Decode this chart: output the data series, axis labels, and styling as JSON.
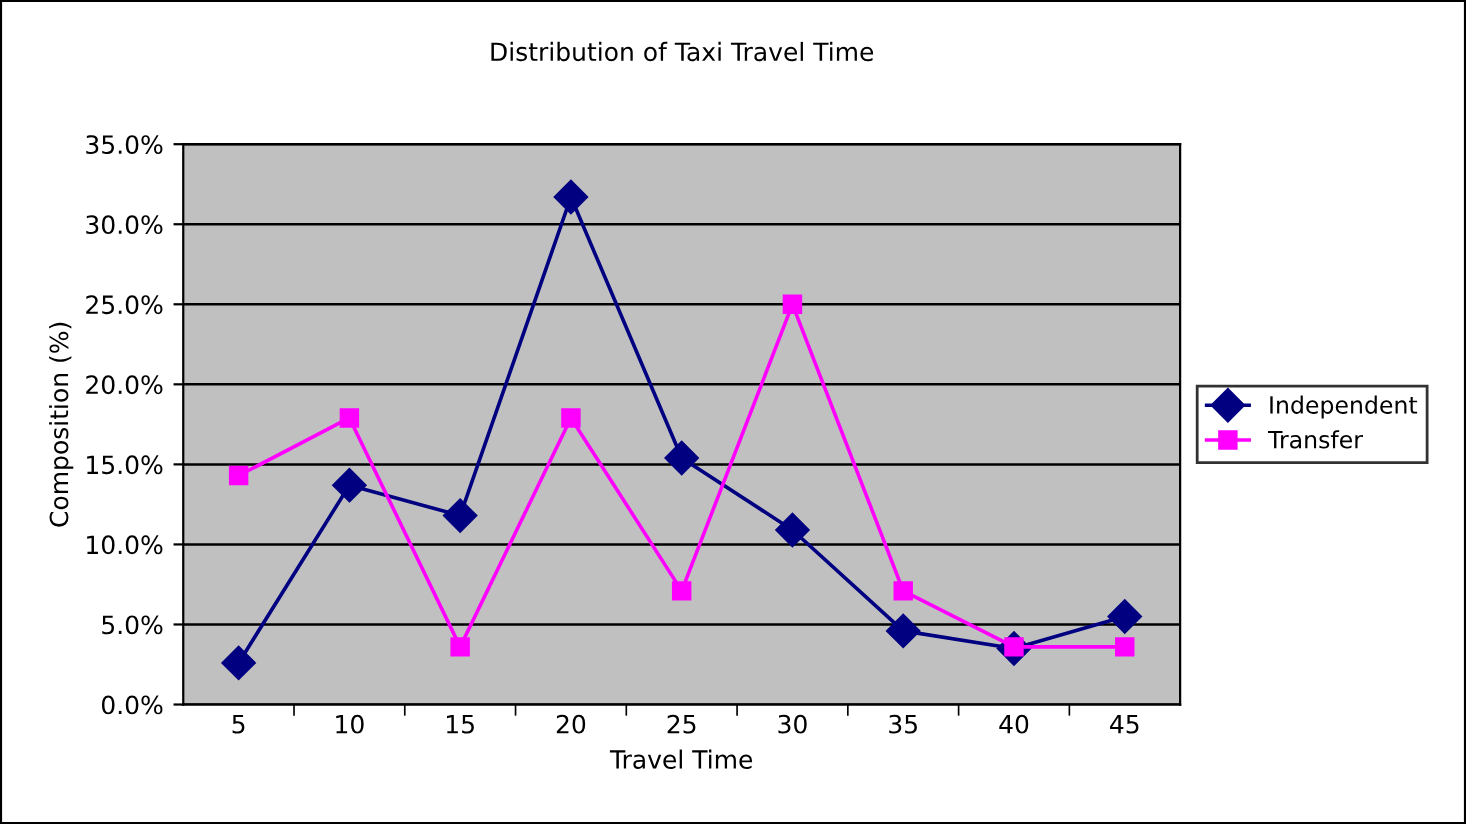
{
  "chart_data": {
    "type": "line",
    "title": "Distribution of Taxi Travel Time",
    "xlabel": "Travel Time",
    "ylabel": "Composition (%)",
    "categories": [
      "5",
      "10",
      "15",
      "20",
      "25",
      "30",
      "35",
      "40",
      "45"
    ],
    "series": [
      {
        "name": "Independent",
        "color": "#000080",
        "marker": "diamond",
        "values": [
          2.6,
          13.7,
          11.8,
          31.7,
          15.4,
          10.9,
          4.6,
          3.5,
          5.5
        ]
      },
      {
        "name": "Transfer",
        "color": "#ff00ff",
        "marker": "square",
        "values": [
          14.3,
          17.9,
          3.6,
          17.9,
          7.1,
          25.0,
          7.1,
          3.6,
          3.6
        ]
      }
    ],
    "ylim": [
      0,
      35
    ],
    "yticks": [
      {
        "value": 0,
        "label": "0.0%"
      },
      {
        "value": 5,
        "label": "5.0%"
      },
      {
        "value": 10,
        "label": "10.0%"
      },
      {
        "value": 15,
        "label": "15.0%"
      },
      {
        "value": 20,
        "label": "20.0%"
      },
      {
        "value": 25,
        "label": "25.0%"
      },
      {
        "value": 30,
        "label": "30.0%"
      },
      {
        "value": 35,
        "label": "35.0%"
      }
    ],
    "grid": "y",
    "legend": "right",
    "line_style": "solid"
  }
}
